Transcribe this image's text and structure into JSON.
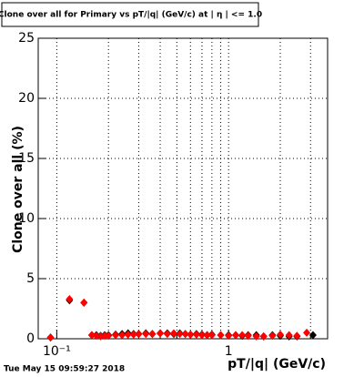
{
  "chart_data": {
    "type": "scatter",
    "title": "Clone  over all for Primary vs pT/|q| (GeV/c) at |  η | <= 1.0",
    "x_label": "pT/|q| (GeV/c)",
    "y_label": "Clone  over all (%)",
    "timestamp": "Tue May 15 09:59:27 2018",
    "x_log": true,
    "xlim": [
      0.078,
      3.77
    ],
    "ylim": [
      0,
      25
    ],
    "xticks": [
      {
        "value": 0.1,
        "label": "10⁻¹"
      },
      {
        "value": 1,
        "label": "1"
      }
    ],
    "xminor_ticks": [
      0.2,
      0.3,
      0.4,
      0.5,
      0.6,
      0.7,
      0.8,
      0.9,
      2,
      3
    ],
    "yticks": [
      0,
      5,
      10,
      15,
      20,
      25
    ],
    "grid": true,
    "series": [
      {
        "color": "#000000",
        "x": [
          0.092,
          0.1186,
          0.144,
          0.16,
          0.17,
          0.18,
          0.19,
          0.2,
          0.22,
          0.24,
          0.26,
          0.28,
          0.3,
          0.33,
          0.36,
          0.4,
          0.44,
          0.48,
          0.52,
          0.56,
          0.6,
          0.65,
          0.7,
          0.75,
          0.8,
          0.9,
          1.0,
          1.1,
          1.2,
          1.3,
          1.45,
          1.6,
          1.8,
          2.0,
          2.25,
          2.5,
          3.1
        ],
        "values": [
          0.1,
          3.2,
          3.0,
          0.3,
          0.3,
          0.25,
          0.3,
          0.3,
          0.35,
          0.4,
          0.45,
          0.4,
          0.4,
          0.45,
          0.4,
          0.45,
          0.45,
          0.4,
          0.45,
          0.4,
          0.35,
          0.4,
          0.35,
          0.3,
          0.35,
          0.3,
          0.3,
          0.3,
          0.25,
          0.3,
          0.3,
          0.2,
          0.3,
          0.25,
          0.2,
          0.2,
          0.3
        ]
      },
      {
        "color": "#ff0000",
        "x": [
          0.092,
          0.1186,
          0.144,
          0.16,
          0.17,
          0.18,
          0.19,
          0.2,
          0.22,
          0.24,
          0.26,
          0.28,
          0.3,
          0.33,
          0.36,
          0.4,
          0.44,
          0.48,
          0.52,
          0.56,
          0.6,
          0.65,
          0.7,
          0.75,
          0.8,
          0.9,
          1.0,
          1.1,
          1.2,
          1.3,
          1.45,
          1.6,
          1.8,
          2.0,
          2.25,
          2.5,
          2.85
        ],
        "values": [
          0.1,
          3.3,
          3.0,
          0.3,
          0.25,
          0.2,
          0.25,
          0.25,
          0.3,
          0.3,
          0.35,
          0.35,
          0.4,
          0.4,
          0.4,
          0.45,
          0.4,
          0.45,
          0.4,
          0.4,
          0.35,
          0.35,
          0.3,
          0.3,
          0.3,
          0.3,
          0.25,
          0.3,
          0.3,
          0.25,
          0.2,
          0.2,
          0.25,
          0.35,
          0.3,
          0.25,
          0.5
        ]
      }
    ]
  }
}
